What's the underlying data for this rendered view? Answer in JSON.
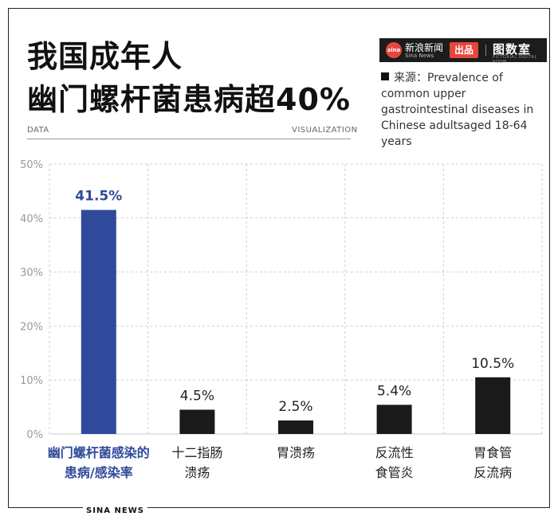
{
  "title": [
    "我国成年人",
    "幽门螺杆菌患病超40%"
  ],
  "rule_left": "DATA",
  "rule_right": "VISUALIZATION",
  "brand": {
    "sina_logo": "sina",
    "sina_cn": "新浪新闻",
    "sina_en": "Sina News",
    "chupin": "出品",
    "tushu": "图数室",
    "tushu_en": "PICTORIAL DIGITAL ROOM"
  },
  "source_text": "来源：Prevalence of common upper gastrointestinal diseases in Chinese adultsaged 18-64 years",
  "footer": "SINA NEWS",
  "colors": {
    "highlight": "#2f4a9a",
    "bar": "#1a1a1a",
    "grid": "#cfcfcf",
    "axis_text": "#999999"
  },
  "chart_data": {
    "type": "bar",
    "categories": [
      [
        "幽门螺杆菌感染的",
        "患病/感染率"
      ],
      [
        "十二指肠",
        "溃疡"
      ],
      [
        "胃溃疡"
      ],
      [
        "反流性",
        "食管炎"
      ],
      [
        "胃食管",
        "反流病"
      ]
    ],
    "values": [
      41.5,
      4.5,
      2.5,
      5.4,
      10.5
    ],
    "value_labels": [
      "41.5%",
      "4.5%",
      "2.5%",
      "5.4%",
      "10.5%"
    ],
    "highlight_index": 0,
    "y_ticks": [
      0,
      10,
      20,
      30,
      40,
      50
    ],
    "y_tick_labels": [
      "0%",
      "10%",
      "20%",
      "30%",
      "40%",
      "50%"
    ],
    "ylim": [
      0,
      50
    ],
    "grid": true
  }
}
